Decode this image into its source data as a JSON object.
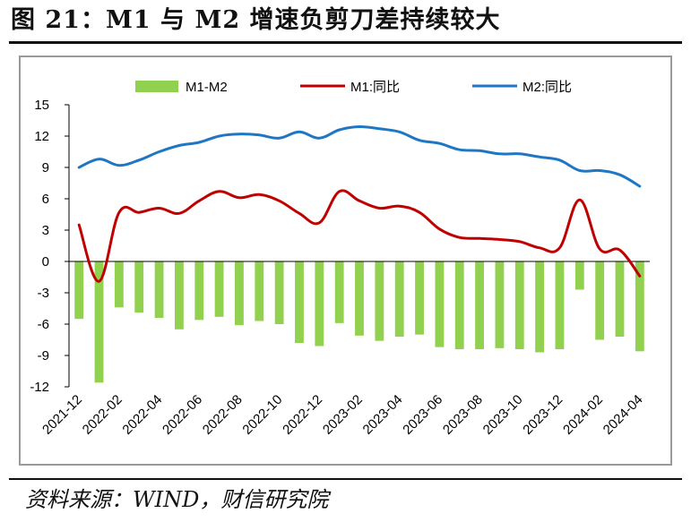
{
  "figure": {
    "title": "图 21：M1 与 M2 增速负剪刀差持续较大",
    "source": "资料来源：WIND，财信研究院"
  },
  "colors": {
    "diff_bar": "#92D050",
    "m1_line": "#C00000",
    "m2_line": "#1F77C4"
  },
  "chart_data": {
    "type": "bar+line",
    "x": [
      "2021-12",
      "2022-01",
      "2022-02",
      "2022-03",
      "2022-04",
      "2022-05",
      "2022-06",
      "2022-07",
      "2022-08",
      "2022-09",
      "2022-10",
      "2022-11",
      "2022-12",
      "2023-01",
      "2023-02",
      "2023-03",
      "2023-04",
      "2023-05",
      "2023-06",
      "2023-07",
      "2023-08",
      "2023-09",
      "2023-10",
      "2023-11",
      "2023-12",
      "2024-01",
      "2024-02",
      "2024-03",
      "2024-04"
    ],
    "x_tick_labels": [
      "2021-12",
      "2022-02",
      "2022-04",
      "2022-06",
      "2022-08",
      "2022-10",
      "2022-12",
      "2023-02",
      "2023-04",
      "2023-06",
      "2023-08",
      "2023-10",
      "2023-12",
      "2024-02",
      "2024-04"
    ],
    "series": [
      {
        "name": "M1-M2",
        "kind": "bar",
        "values": [
          -5.5,
          -11.6,
          -4.4,
          -4.9,
          -5.4,
          -6.5,
          -5.6,
          -5.3,
          -6.1,
          -5.7,
          -6.0,
          -7.8,
          -8.1,
          -5.9,
          -7.1,
          -7.6,
          -7.2,
          -7.0,
          -8.2,
          -8.4,
          -8.4,
          -8.3,
          -8.4,
          -8.7,
          -8.4,
          -2.7,
          -7.5,
          -7.2,
          -8.6
        ]
      },
      {
        "name": "M1:同比",
        "kind": "line",
        "values": [
          3.5,
          -1.9,
          4.7,
          4.7,
          5.1,
          4.6,
          5.8,
          6.7,
          6.1,
          6.4,
          5.8,
          4.6,
          3.7,
          6.7,
          5.8,
          5.1,
          5.3,
          4.7,
          3.1,
          2.3,
          2.2,
          2.1,
          1.9,
          1.3,
          1.3,
          5.9,
          1.2,
          1.1,
          -1.4
        ]
      },
      {
        "name": "M2:同比",
        "kind": "line",
        "values": [
          9.0,
          9.8,
          9.2,
          9.7,
          10.5,
          11.1,
          11.4,
          12.0,
          12.2,
          12.1,
          11.8,
          12.4,
          11.8,
          12.6,
          12.9,
          12.7,
          12.4,
          11.6,
          11.3,
          10.7,
          10.6,
          10.3,
          10.3,
          10.0,
          9.7,
          8.7,
          8.7,
          8.3,
          7.2
        ]
      }
    ],
    "y_ticks": [
      15,
      12,
      9,
      6,
      3,
      0,
      -3,
      -6,
      -9,
      -12
    ],
    "ylim": [
      -12,
      15
    ],
    "grid": false,
    "legend_placement": "top"
  }
}
